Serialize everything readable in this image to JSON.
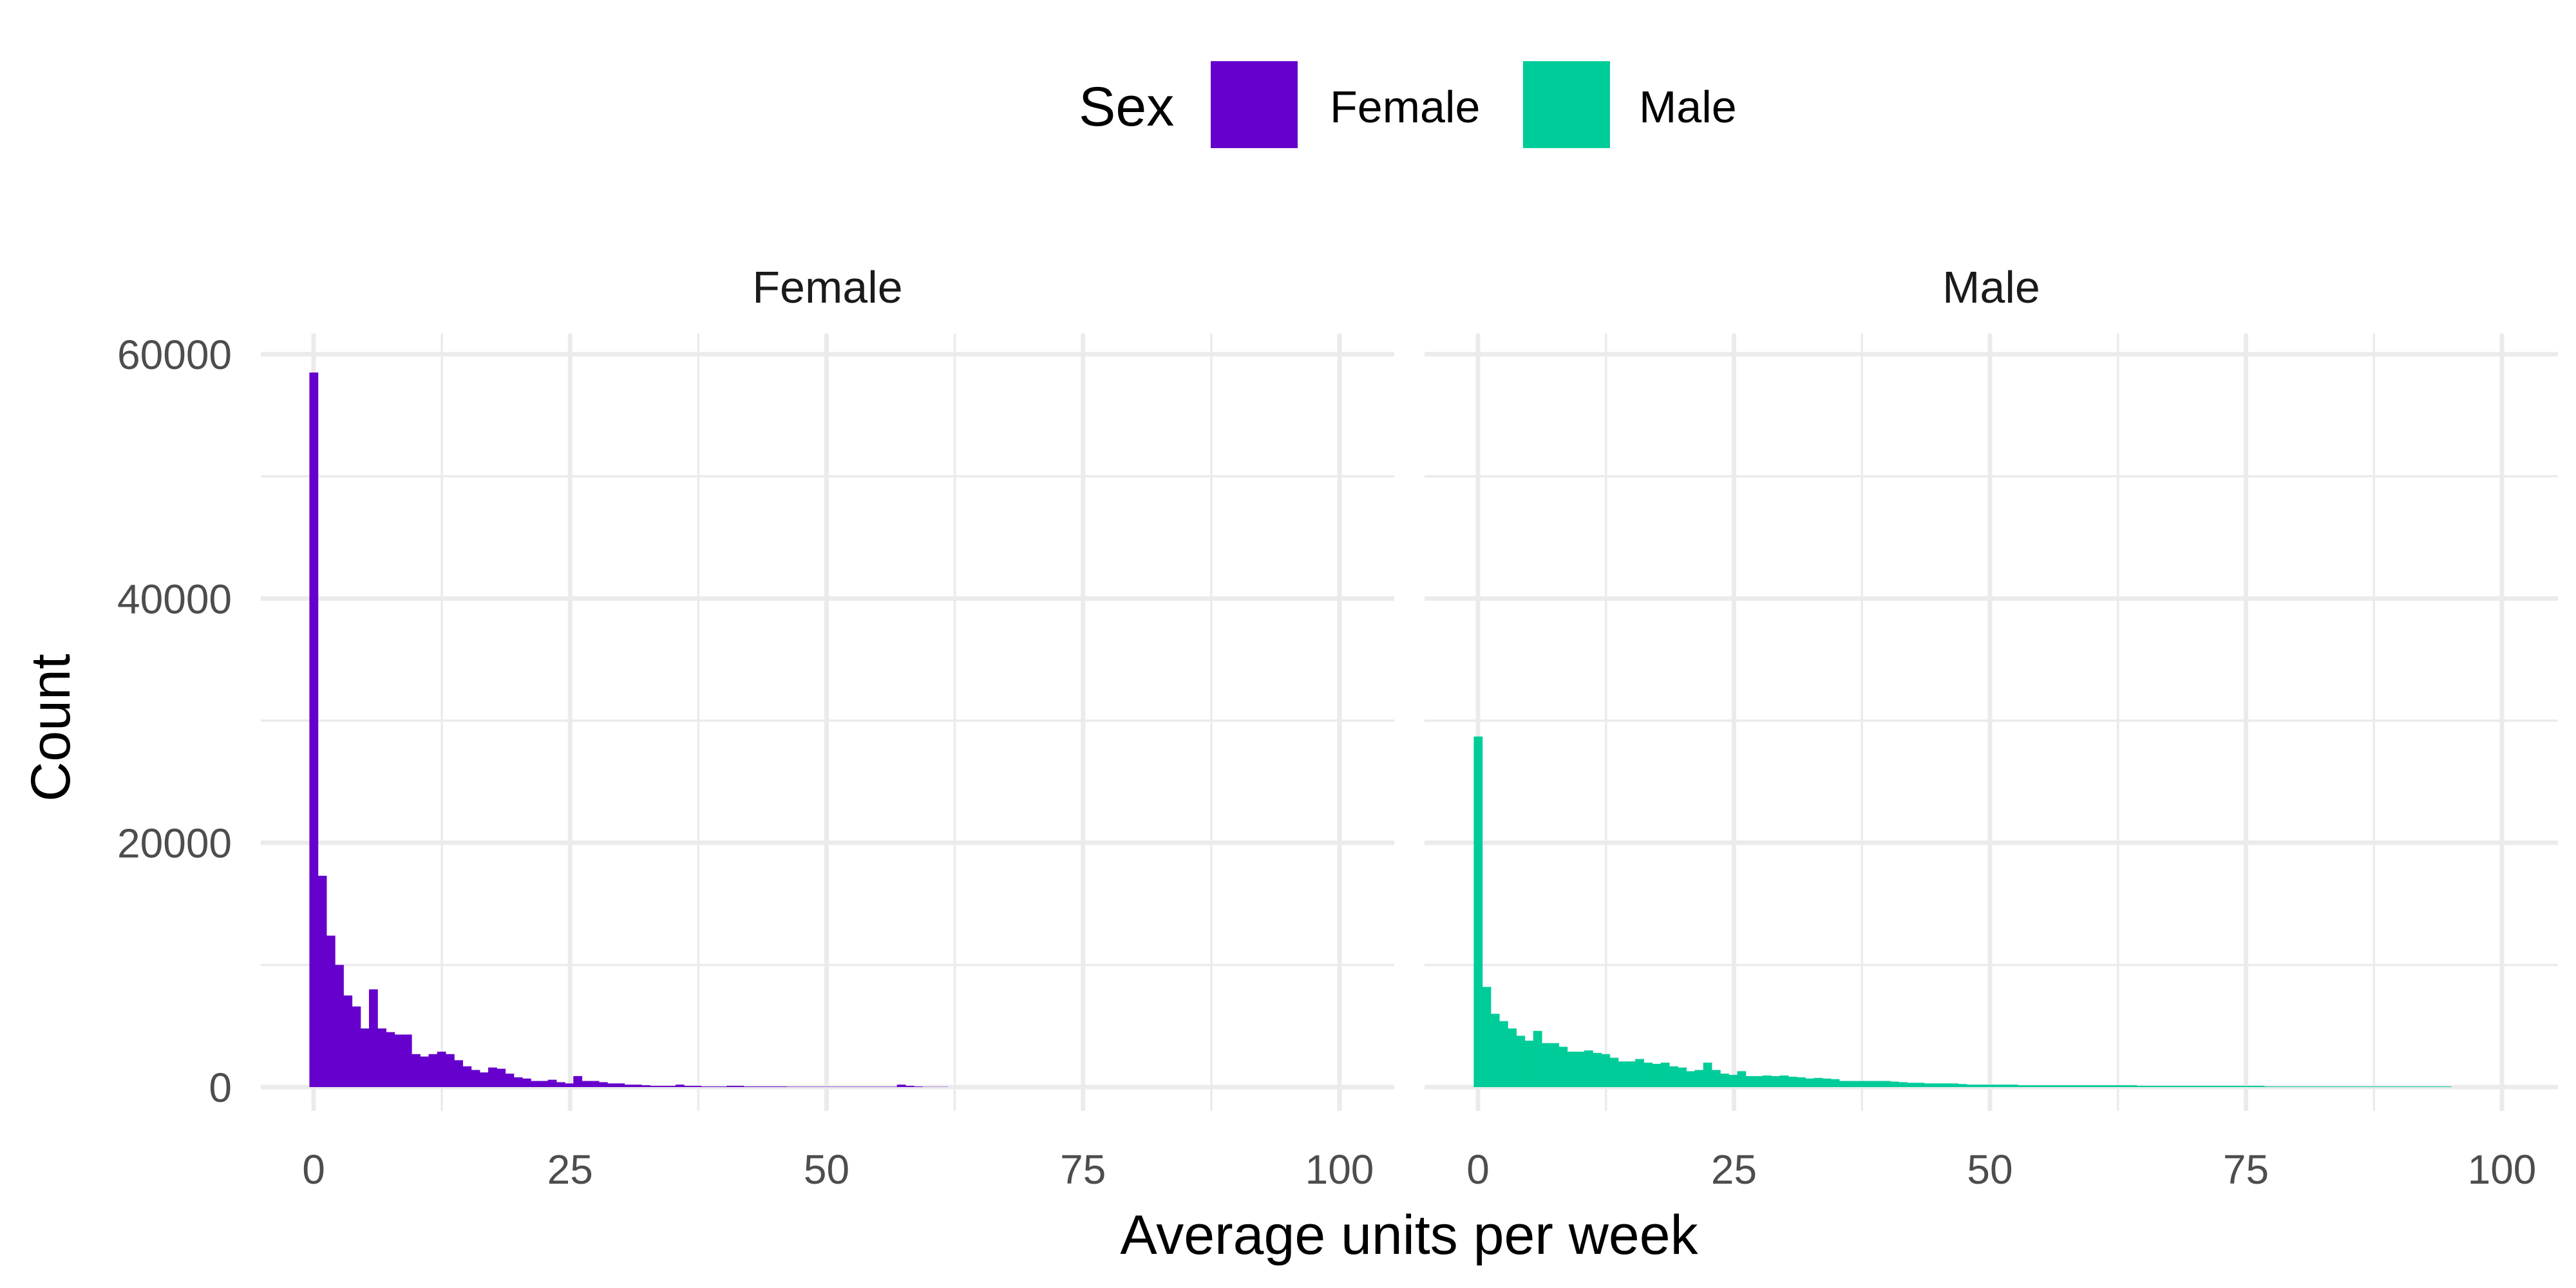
{
  "chart_data": {
    "type": "bar",
    "subtype": "faceted-histogram",
    "xlabel": "Average units per week",
    "ylabel": "Count",
    "xlim": [
      0,
      100
    ],
    "ylim": [
      0,
      60000
    ],
    "x_ticks": [
      0,
      25,
      50,
      75,
      100
    ],
    "y_ticks": [
      0,
      20000,
      40000,
      60000
    ],
    "grid": true,
    "legend": {
      "title": "Sex",
      "placement": "top",
      "entries": [
        {
          "label": "Female",
          "color": "#6600cc"
        },
        {
          "label": "Male",
          "color": "#00cc99"
        }
      ]
    },
    "bin_width": 0.83,
    "facets": [
      {
        "label": "Female",
        "color": "#6600cc",
        "bin_start": 0,
        "values": [
          58500,
          17300,
          12400,
          10000,
          7500,
          6600,
          4800,
          8000,
          4800,
          4500,
          4300,
          4300,
          2700,
          2500,
          2700,
          2900,
          2700,
          2200,
          1700,
          1400,
          1200,
          1600,
          1500,
          1100,
          800,
          700,
          500,
          500,
          600,
          400,
          300,
          900,
          500,
          500,
          400,
          300,
          300,
          200,
          200,
          150,
          100,
          100,
          100,
          200,
          100,
          100,
          50,
          50,
          50,
          100,
          100,
          50,
          50,
          50,
          50,
          50,
          30,
          30,
          30,
          30,
          30,
          30,
          30,
          30,
          30,
          30,
          30,
          30,
          30,
          200,
          100,
          50,
          20,
          20,
          20
        ]
      },
      {
        "label": "Male",
        "color": "#00cc99",
        "bin_start": 0,
        "values": [
          28700,
          8200,
          6000,
          5400,
          4800,
          4200,
          3800,
          4600,
          3600,
          3600,
          3300,
          2900,
          2900,
          3000,
          2800,
          2700,
          2400,
          2100,
          2100,
          2300,
          2000,
          1900,
          2000,
          1700,
          1600,
          1300,
          1400,
          2000,
          1400,
          1100,
          1000,
          1300,
          900,
          900,
          950,
          900,
          950,
          850,
          800,
          700,
          750,
          700,
          650,
          500,
          500,
          500,
          500,
          500,
          500,
          450,
          400,
          350,
          350,
          300,
          300,
          300,
          300,
          250,
          200,
          200,
          200,
          200,
          200,
          200,
          150,
          150,
          150,
          150,
          150,
          150,
          150,
          150,
          150,
          150,
          150,
          150,
          150,
          150,
          100,
          100,
          100,
          100,
          100,
          100,
          100,
          100,
          100,
          100,
          100,
          100,
          100,
          100,
          100,
          50,
          50,
          50,
          50,
          50,
          50,
          50,
          50,
          50,
          50,
          50,
          50,
          50,
          50,
          50,
          50,
          50,
          50,
          50,
          50,
          50,
          50
        ]
      }
    ]
  }
}
